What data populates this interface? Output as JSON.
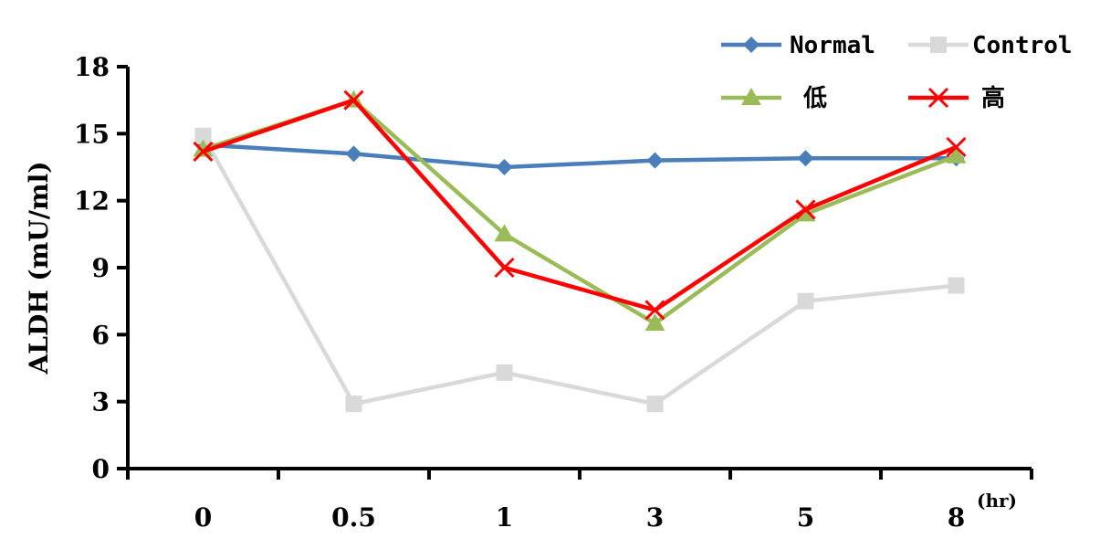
{
  "chart_data": {
    "type": "line",
    "title": "",
    "xlabel": "",
    "x_unit": "(hr)",
    "ylabel": "ALDH (mU/ml)",
    "categories": [
      "0",
      "0.5",
      "1",
      "3",
      "5",
      "8"
    ],
    "yticks": [
      "0",
      "3",
      "6",
      "9",
      "12",
      "15",
      "18"
    ],
    "ylim": [
      0,
      18
    ],
    "grid": false,
    "legend_position": "top-right",
    "series": [
      {
        "name": "Normal",
        "color": "#4A7EBB",
        "marker": "diamond",
        "values": [
          14.5,
          14.1,
          13.5,
          13.8,
          13.9,
          13.9
        ]
      },
      {
        "name": "Control",
        "color": "#D9D9D9",
        "marker": "square",
        "values": [
          14.9,
          2.9,
          4.3,
          2.9,
          7.5,
          8.2
        ]
      },
      {
        "name": "低",
        "color": "#9BBB59",
        "marker": "triangle",
        "values": [
          14.3,
          16.5,
          10.5,
          6.5,
          11.4,
          14.0
        ]
      },
      {
        "name": "高",
        "color": "#FF0000",
        "marker": "x",
        "values": [
          14.2,
          16.5,
          9.0,
          7.1,
          11.6,
          14.4
        ]
      }
    ]
  }
}
